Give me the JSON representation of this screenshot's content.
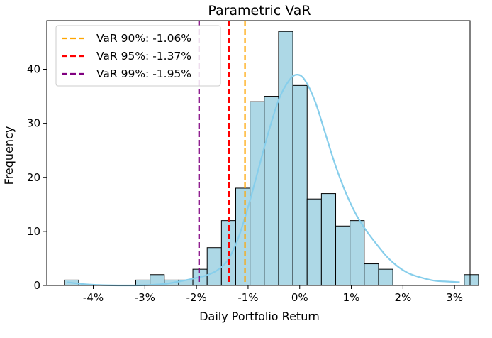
{
  "chart_data": {
    "type": "bar",
    "title": "Parametric VaR",
    "xlabel": "Daily Portfolio Return",
    "ylabel": "Frequency",
    "xlim": [
      -4.9,
      3.3
    ],
    "ylim": [
      0,
      49
    ],
    "x_ticks": [
      {
        "value": -4,
        "label": "-4%"
      },
      {
        "value": -3,
        "label": "-3%"
      },
      {
        "value": -2,
        "label": "-2%"
      },
      {
        "value": -1,
        "label": "-1%"
      },
      {
        "value": 0,
        "label": "0%"
      },
      {
        "value": 1,
        "label": "1%"
      },
      {
        "value": 2,
        "label": "2%"
      },
      {
        "value": 3,
        "label": "3%"
      }
    ],
    "y_ticks": [
      {
        "value": 0,
        "label": "0"
      },
      {
        "value": 10,
        "label": "10"
      },
      {
        "value": 20,
        "label": "20"
      },
      {
        "value": 30,
        "label": "30"
      },
      {
        "value": 40,
        "label": "40"
      }
    ],
    "grid": false,
    "legend_position": "top-left",
    "histogram": {
      "bin_start": -4.56,
      "bin_width": 0.2767,
      "counts": [
        1,
        0,
        0,
        0,
        0,
        1,
        2,
        1,
        1,
        3,
        7,
        12,
        18,
        34,
        35,
        47,
        37,
        16,
        17,
        11,
        12,
        4,
        3,
        0,
        0,
        0,
        0,
        0,
        2
      ],
      "fill_color": "#add8e6",
      "edge_color": "#000000"
    },
    "kde": {
      "color": "#87ceeb",
      "x": [
        -4.5,
        -4.2,
        -3.8,
        -3.4,
        -3.0,
        -2.6,
        -2.3,
        -2.0,
        -1.8,
        -1.6,
        -1.4,
        -1.2,
        -1.0,
        -0.8,
        -0.6,
        -0.4,
        -0.2,
        -0.05,
        0.1,
        0.3,
        0.5,
        0.7,
        0.9,
        1.1,
        1.3,
        1.5,
        1.7,
        1.9,
        2.1,
        2.3,
        2.6,
        2.9,
        3.1
      ],
      "y": [
        0.6,
        0.25,
        0.05,
        0.0,
        0.05,
        0.3,
        0.8,
        1.4,
        1.9,
        2.8,
        4.6,
        8.5,
        14.5,
        21.5,
        28.5,
        34.5,
        38.0,
        39.0,
        38.0,
        34.0,
        28.0,
        22.0,
        17.0,
        13.0,
        10.0,
        7.5,
        5.2,
        3.5,
        2.3,
        1.6,
        0.9,
        0.7,
        0.6
      ]
    },
    "var_lines": [
      {
        "name": "VaR 90%: -1.06%",
        "value": -1.06,
        "color": "#ffa500"
      },
      {
        "name": "VaR 95%: -1.37%",
        "value": -1.37,
        "color": "#ff0000"
      },
      {
        "name": "VaR 99%: -1.95%",
        "value": -1.95,
        "color": "#800080"
      }
    ]
  }
}
